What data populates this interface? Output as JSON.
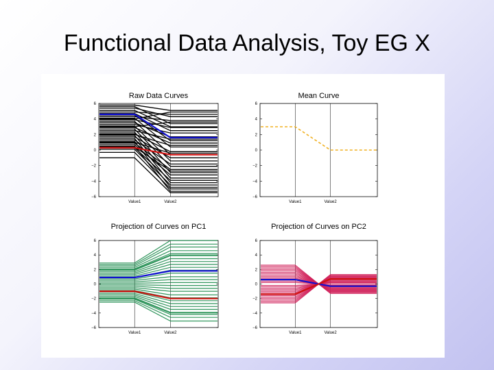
{
  "slide": {
    "title": "Functional Data Analysis, Toy EG X"
  },
  "colors": {
    "raw_lines": "#000000",
    "mean_line": "#f0b020",
    "pc1_lines": "#1a8a4a",
    "pc2_lines": "#d0205a",
    "highlight_blue": "#1010d0",
    "highlight_red": "#d01010"
  },
  "chart_data": [
    {
      "type": "line",
      "title": "Raw Data Curves",
      "categories": [
        "Value1",
        "Value2"
      ],
      "ylim": [
        -6,
        6
      ],
      "yticks": [
        -6,
        -4,
        -2,
        0,
        2,
        4,
        6
      ],
      "series": [
        {
          "values": [
            5.8,
            5.1
          ]
        },
        {
          "values": [
            5.4,
            4.3
          ]
        },
        {
          "values": [
            5.1,
            3.0
          ]
        },
        {
          "values": [
            4.9,
            4.6
          ]
        },
        {
          "values": [
            4.7,
            2.5
          ]
        },
        {
          "values": [
            4.5,
            1.2
          ]
        },
        {
          "values": [
            4.3,
            3.8
          ]
        },
        {
          "values": [
            4.1,
            0.4
          ]
        },
        {
          "values": [
            3.9,
            2.9
          ]
        },
        {
          "values": [
            3.7,
            -0.6
          ]
        },
        {
          "values": [
            3.5,
            1.7
          ]
        },
        {
          "values": [
            3.3,
            2.2
          ]
        },
        {
          "values": [
            3.1,
            -1.4
          ]
        },
        {
          "values": [
            2.9,
            0.9
          ]
        },
        {
          "values": [
            2.7,
            -2.1
          ]
        },
        {
          "values": [
            2.5,
            1.4
          ]
        },
        {
          "values": [
            2.3,
            -2.9
          ]
        },
        {
          "values": [
            2.1,
            -0.2
          ]
        },
        {
          "values": [
            1.9,
            -3.6
          ]
        },
        {
          "values": [
            1.7,
            -1.0
          ]
        },
        {
          "values": [
            1.5,
            -4.2
          ]
        },
        {
          "values": [
            1.3,
            -1.8
          ]
        },
        {
          "values": [
            1.1,
            -4.8
          ]
        },
        {
          "values": [
            0.9,
            -2.5
          ]
        },
        {
          "values": [
            0.7,
            -3.2
          ]
        },
        {
          "values": [
            0.5,
            -5.3
          ]
        },
        {
          "values": [
            0.3,
            -3.9
          ]
        },
        {
          "values": [
            0.1,
            -4.5
          ]
        },
        {
          "values": [
            -0.3,
            -5.0
          ]
        },
        {
          "values": [
            -1.0,
            -5.5
          ]
        },
        {
          "values": [
            5.6,
            3.4
          ]
        },
        {
          "values": [
            4.0,
            4.9
          ]
        },
        {
          "values": [
            3.0,
            3.6
          ]
        },
        {
          "values": [
            2.0,
            0.6
          ]
        },
        {
          "values": [
            1.0,
            -0.4
          ]
        },
        {
          "values": [
            0.4,
            -2.7
          ]
        }
      ],
      "highlights": [
        {
          "color": "blue",
          "values": [
            4.6,
            1.6
          ]
        },
        {
          "color": "red",
          "values": [
            0.3,
            -0.6
          ]
        }
      ]
    },
    {
      "type": "line",
      "title": "Mean Curve",
      "categories": [
        "Value1",
        "Value2"
      ],
      "ylim": [
        -6,
        6
      ],
      "yticks": [
        -6,
        -4,
        -2,
        0,
        2,
        4,
        6
      ],
      "series": [
        {
          "values": [
            3.0,
            0.0
          ]
        }
      ],
      "line_style": "dashed"
    },
    {
      "type": "line",
      "title": "Projection of Curves on PC1",
      "categories": [
        "Value1",
        "Value2"
      ],
      "ylim": [
        -6,
        6
      ],
      "yticks": [
        -6,
        -4,
        -2,
        0,
        2,
        4,
        6
      ],
      "series": [
        {
          "values": [
            2.9,
            6.0
          ]
        },
        {
          "values": [
            2.7,
            5.5
          ]
        },
        {
          "values": [
            2.5,
            5.1
          ]
        },
        {
          "values": [
            2.3,
            4.6
          ]
        },
        {
          "values": [
            2.1,
            4.2
          ]
        },
        {
          "values": [
            1.9,
            3.9
          ]
        },
        {
          "values": [
            1.7,
            3.5
          ]
        },
        {
          "values": [
            1.5,
            3.1
          ]
        },
        {
          "values": [
            1.3,
            2.7
          ]
        },
        {
          "values": [
            1.1,
            2.3
          ]
        },
        {
          "values": [
            0.9,
            1.9
          ]
        },
        {
          "values": [
            0.7,
            1.5
          ]
        },
        {
          "values": [
            0.5,
            1.0
          ]
        },
        {
          "values": [
            0.3,
            0.6
          ]
        },
        {
          "values": [
            0.1,
            0.2
          ]
        },
        {
          "values": [
            -0.1,
            -0.2
          ]
        },
        {
          "values": [
            -0.3,
            -0.6
          ]
        },
        {
          "values": [
            -0.5,
            -1.0
          ]
        },
        {
          "values": [
            -0.7,
            -1.5
          ]
        },
        {
          "values": [
            -0.9,
            -1.9
          ]
        },
        {
          "values": [
            -1.1,
            -2.3
          ]
        },
        {
          "values": [
            -1.3,
            -2.7
          ]
        },
        {
          "values": [
            -1.5,
            -3.1
          ]
        },
        {
          "values": [
            -1.7,
            -3.5
          ]
        },
        {
          "values": [
            -1.9,
            -3.9
          ]
        },
        {
          "values": [
            -2.1,
            -4.2
          ]
        },
        {
          "values": [
            -2.3,
            -4.6
          ]
        },
        {
          "values": [
            -2.5,
            -5.1
          ]
        },
        {
          "values": [
            2.0,
            4.0
          ]
        },
        {
          "values": [
            -2.0,
            -4.0
          ]
        }
      ],
      "highlights": [
        {
          "color": "blue",
          "values": [
            0.9,
            1.8
          ]
        },
        {
          "color": "red",
          "values": [
            -1.0,
            -2.0
          ]
        }
      ]
    },
    {
      "type": "line",
      "title": "Projection of Curves on PC2",
      "categories": [
        "Value1",
        "Value2"
      ],
      "ylim": [
        -6,
        6
      ],
      "yticks": [
        -6,
        -4,
        -2,
        0,
        2,
        4,
        6
      ],
      "series": [
        {
          "values": [
            2.6,
            -1.3
          ]
        },
        {
          "values": [
            2.4,
            -1.2
          ]
        },
        {
          "values": [
            2.2,
            -1.1
          ]
        },
        {
          "values": [
            2.0,
            -1.0
          ]
        },
        {
          "values": [
            1.8,
            -0.9
          ]
        },
        {
          "values": [
            1.6,
            -0.8
          ]
        },
        {
          "values": [
            1.4,
            -0.7
          ]
        },
        {
          "values": [
            1.2,
            -0.6
          ]
        },
        {
          "values": [
            1.0,
            -0.5
          ]
        },
        {
          "values": [
            0.8,
            -0.4
          ]
        },
        {
          "values": [
            0.6,
            -0.3
          ]
        },
        {
          "values": [
            0.4,
            -0.2
          ]
        },
        {
          "values": [
            0.2,
            -0.1
          ]
        },
        {
          "values": [
            -0.2,
            0.1
          ]
        },
        {
          "values": [
            -0.4,
            0.2
          ]
        },
        {
          "values": [
            -0.6,
            0.3
          ]
        },
        {
          "values": [
            -0.8,
            0.4
          ]
        },
        {
          "values": [
            -1.0,
            0.5
          ]
        },
        {
          "values": [
            -1.2,
            0.6
          ]
        },
        {
          "values": [
            -1.4,
            0.7
          ]
        },
        {
          "values": [
            -1.6,
            0.8
          ]
        },
        {
          "values": [
            -1.8,
            0.9
          ]
        },
        {
          "values": [
            -2.0,
            1.0
          ]
        },
        {
          "values": [
            -2.2,
            1.1
          ]
        },
        {
          "values": [
            -2.4,
            1.2
          ]
        },
        {
          "values": [
            -2.6,
            1.3
          ]
        }
      ],
      "highlights": [
        {
          "color": "blue",
          "values": [
            0.6,
            -0.3
          ]
        },
        {
          "color": "red",
          "values": [
            -1.4,
            0.7
          ]
        }
      ]
    }
  ]
}
